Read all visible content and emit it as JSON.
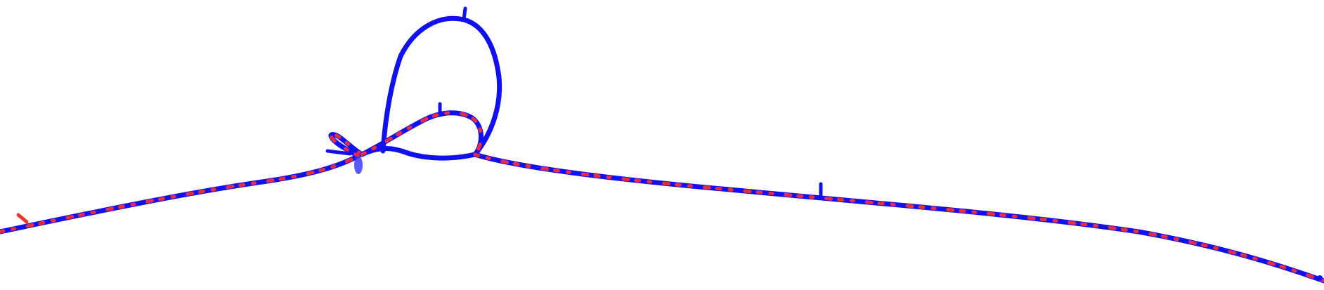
{
  "colors": {
    "background": "#ffffff",
    "primary_trace": "#1010f0",
    "accent_trace": "#ff3030"
  }
}
